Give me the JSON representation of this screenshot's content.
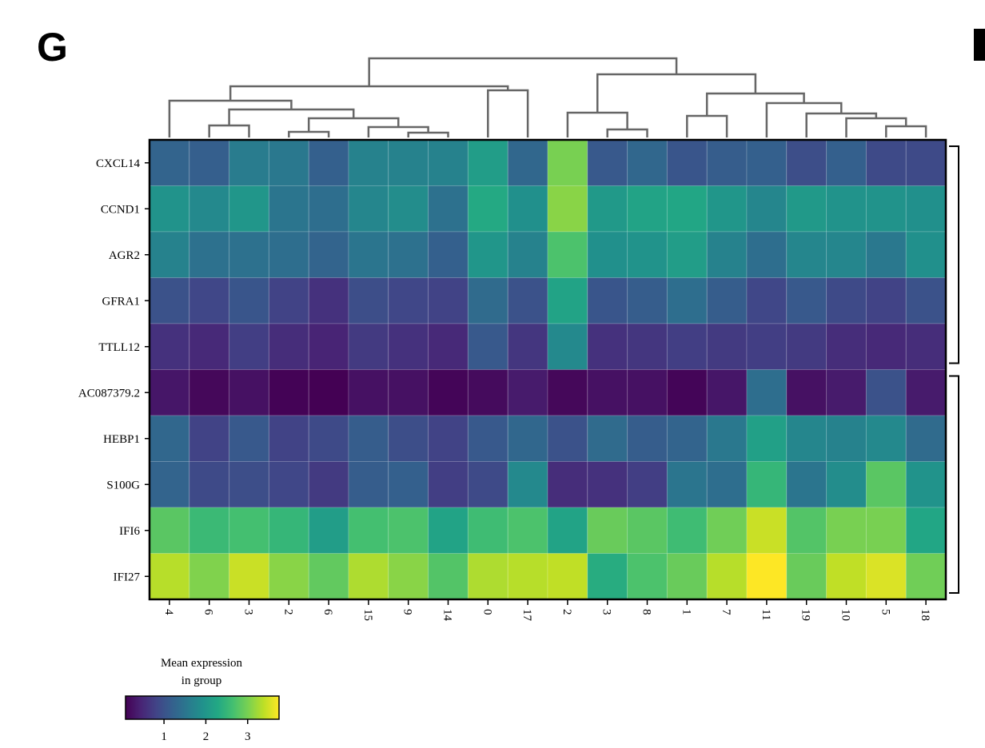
{
  "panel_label": "G",
  "next_panel_label": "H",
  "chart_data": {
    "type": "heatmap",
    "colormap": "viridis",
    "rows": [
      "CXCL14",
      "CCND1",
      "AGR2",
      "GFRA1",
      "TTLL12",
      "AC087379.2",
      "HEBP1",
      "S100G",
      "IFI6",
      "IFI27"
    ],
    "columns": [
      "4",
      "6",
      "3",
      "2",
      "6",
      "15",
      "9",
      "14",
      "0",
      "17",
      "2",
      "3",
      "8",
      "1",
      "7",
      "11",
      "19",
      "10",
      "5",
      "18"
    ],
    "values": [
      [
        1.25,
        1.18,
        1.6,
        1.55,
        1.2,
        1.7,
        1.7,
        1.7,
        2.1,
        1.3,
        3.0,
        1.1,
        1.3,
        1.05,
        1.15,
        1.2,
        0.95,
        1.2,
        0.9,
        0.9
      ],
      [
        1.95,
        1.8,
        2.0,
        1.5,
        1.4,
        1.75,
        1.85,
        1.45,
        2.3,
        1.9,
        3.1,
        2.05,
        2.2,
        2.25,
        2.0,
        1.75,
        2.05,
        1.95,
        1.95,
        1.9
      ],
      [
        1.7,
        1.45,
        1.45,
        1.4,
        1.25,
        1.5,
        1.45,
        1.2,
        2.0,
        1.7,
        2.7,
        1.9,
        1.95,
        2.1,
        1.7,
        1.4,
        1.75,
        1.75,
        1.55,
        1.9
      ],
      [
        1.0,
        0.85,
        1.05,
        0.8,
        0.6,
        0.95,
        0.85,
        0.8,
        1.35,
        1.0,
        2.2,
        1.05,
        1.15,
        1.4,
        1.15,
        0.85,
        1.1,
        0.9,
        0.8,
        1.0
      ],
      [
        0.6,
        0.5,
        0.75,
        0.55,
        0.45,
        0.7,
        0.6,
        0.5,
        1.1,
        0.65,
        1.8,
        0.6,
        0.65,
        0.75,
        0.7,
        0.75,
        0.7,
        0.55,
        0.5,
        0.55
      ],
      [
        0.3,
        0.15,
        0.25,
        0.1,
        0.08,
        0.25,
        0.25,
        0.12,
        0.18,
        0.35,
        0.15,
        0.25,
        0.25,
        0.12,
        0.3,
        1.4,
        0.25,
        0.35,
        1.0,
        0.35
      ],
      [
        1.3,
        0.8,
        1.1,
        0.8,
        0.9,
        1.15,
        0.95,
        0.8,
        1.1,
        1.3,
        1.0,
        1.35,
        1.15,
        1.25,
        1.55,
        2.15,
        1.75,
        1.7,
        1.8,
        1.35
      ],
      [
        1.25,
        0.9,
        0.95,
        0.85,
        0.7,
        1.15,
        1.2,
        0.75,
        0.9,
        1.8,
        0.55,
        0.6,
        0.75,
        1.5,
        1.4,
        2.5,
        1.5,
        1.85,
        2.8,
        1.95
      ],
      [
        2.8,
        2.55,
        2.65,
        2.5,
        2.1,
        2.65,
        2.7,
        2.2,
        2.6,
        2.7,
        2.2,
        2.9,
        2.8,
        2.6,
        2.95,
        3.45,
        2.75,
        3.0,
        3.0,
        2.25
      ],
      [
        3.35,
        3.05,
        3.45,
        3.1,
        2.85,
        3.3,
        3.1,
        2.75,
        3.3,
        3.35,
        3.4,
        2.35,
        2.7,
        2.9,
        3.35,
        3.75,
        2.9,
        3.4,
        3.55,
        2.95
      ]
    ],
    "colorbar": {
      "title_line1": "Mean expression",
      "title_line2": "in group",
      "ticks": [
        "1",
        "2",
        "3"
      ],
      "range": [
        0.08,
        3.75
      ]
    },
    "column_dendrogram": true,
    "row_groups": [
      [
        0,
        4
      ],
      [
        5,
        9
      ]
    ]
  }
}
